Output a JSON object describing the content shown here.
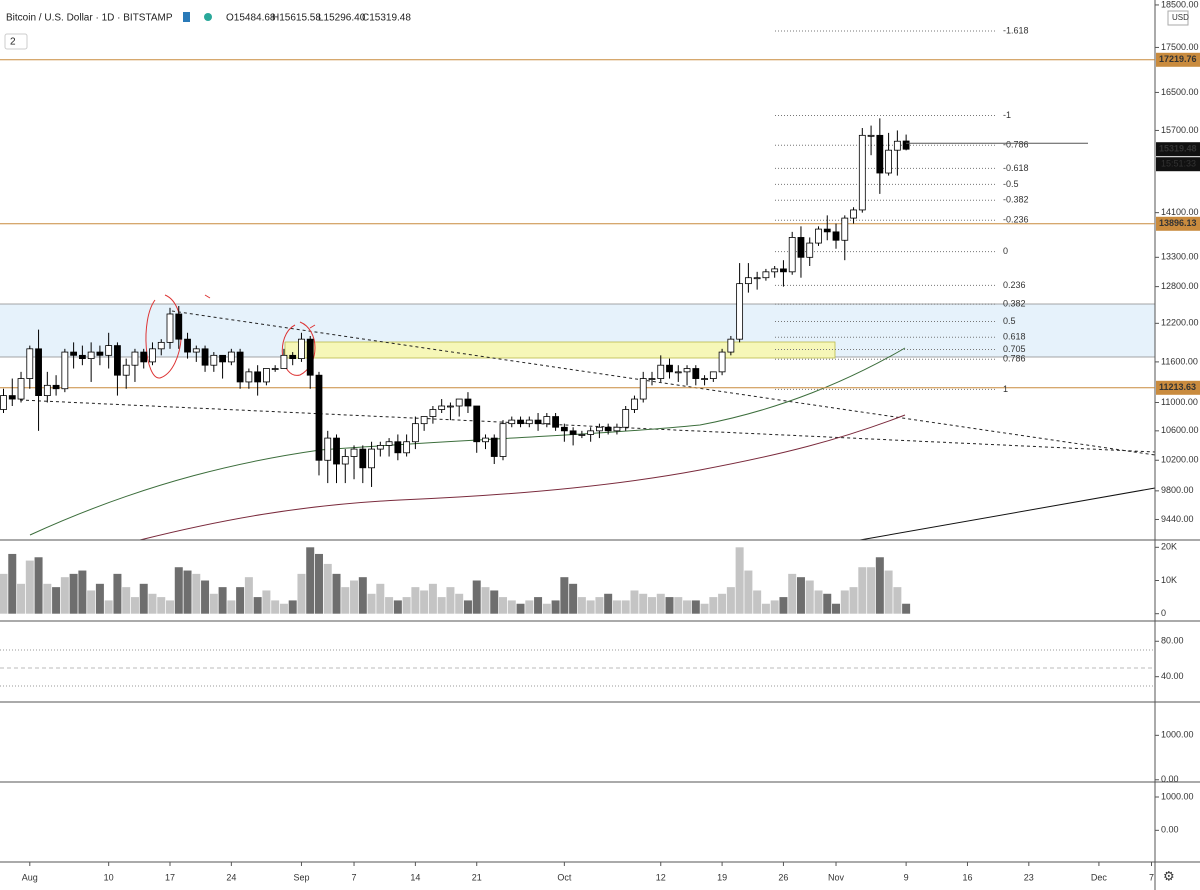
{
  "header": {
    "symbol": "Bitcoin / U.S. Dollar · 1D · BITSTAMP",
    "ohlc_labels": [
      "O15484.68",
      "H15615.58",
      "L15296.40",
      "C15319.48"
    ],
    "badge": "2",
    "currency": "USD",
    "timer": "15:51:33"
  },
  "chart_data": [
    {
      "type": "candlestick",
      "log_scale": true,
      "ylim": [
        9190,
        18620
      ],
      "xlim": [
        -3.4,
        128.4
      ],
      "yticks": [
        {
          "value": 18500,
          "label": "18500.00"
        },
        {
          "value": 17500,
          "label": "17500.00"
        },
        {
          "value": 16500,
          "label": "16500.00"
        },
        {
          "value": 15700,
          "label": "15700.00"
        },
        {
          "value": 14100,
          "label": "14100.00"
        },
        {
          "value": 13300,
          "label": "13300.00"
        },
        {
          "value": 12800,
          "label": "12800.00"
        },
        {
          "value": 12200,
          "label": "12200.00"
        },
        {
          "value": 11600,
          "label": "11600.00"
        },
        {
          "value": 11000,
          "label": "11000.00"
        },
        {
          "value": 10600,
          "label": "10600.00"
        },
        {
          "value": 10200,
          "label": "10200.00"
        },
        {
          "value": 9800,
          "label": "9800.00"
        },
        {
          "value": 9440,
          "label": "9440.00"
        }
      ],
      "xticks": [
        {
          "value": 0,
          "label": "Aug"
        },
        {
          "value": 9,
          "label": "10"
        },
        {
          "value": 16,
          "label": "17"
        },
        {
          "value": 23,
          "label": "24"
        },
        {
          "value": 31,
          "label": "Sep"
        },
        {
          "value": 37,
          "label": "7"
        },
        {
          "value": 44,
          "label": "14"
        },
        {
          "value": 51,
          "label": "21"
        },
        {
          "value": 61,
          "label": "Oct"
        },
        {
          "value": 72,
          "label": "12"
        },
        {
          "value": 79,
          "label": "19"
        },
        {
          "value": 86,
          "label": "26"
        },
        {
          "value": 92,
          "label": "Nov"
        },
        {
          "value": 100,
          "label": "9"
        },
        {
          "value": 107,
          "label": "16"
        },
        {
          "value": 114,
          "label": "23"
        },
        {
          "value": 122,
          "label": "Dec"
        },
        {
          "value": 128,
          "label": "7"
        }
      ],
      "up_color": "#ffffff",
      "down_color": "#000000",
      "levels": [
        17219.76,
        13896.13,
        11213.63
      ],
      "level_color": "#c98b3e",
      "fib_levels": [
        {
          "ratio": -1.618,
          "price": 17880
        },
        {
          "ratio": -1,
          "price": 16010
        },
        {
          "ratio": -0.786,
          "price": 15400
        },
        {
          "ratio": -0.618,
          "price": 14940
        },
        {
          "ratio": -0.5,
          "price": 14630
        },
        {
          "ratio": -0.382,
          "price": 14330
        },
        {
          "ratio": -0.236,
          "price": 13960
        },
        {
          "ratio": 0,
          "price": 13400
        },
        {
          "ratio": 0.236,
          "price": 12820
        },
        {
          "ratio": 0.382,
          "price": 12510
        },
        {
          "ratio": 0.5,
          "price": 12230
        },
        {
          "ratio": 0.618,
          "price": 11980
        },
        {
          "ratio": 0.705,
          "price": 11790
        },
        {
          "ratio": 0.786,
          "price": 11640
        },
        {
          "ratio": 1,
          "price": 11190
        }
      ],
      "x": [
        -3,
        -2,
        -1,
        0,
        1,
        2,
        3,
        4,
        5,
        6,
        7,
        8,
        9,
        10,
        11,
        12,
        13,
        14,
        15,
        16,
        17,
        18,
        19,
        20,
        21,
        22,
        23,
        24,
        25,
        26,
        27,
        28,
        29,
        30,
        31,
        32,
        33,
        34,
        35,
        36,
        37,
        38,
        39,
        40,
        41,
        42,
        43,
        44,
        45,
        46,
        47,
        48,
        49,
        50,
        51,
        52,
        53,
        54,
        55,
        56,
        57,
        58,
        59,
        60,
        61,
        62,
        63,
        64,
        65,
        66,
        67,
        68,
        69,
        70,
        71,
        72,
        73,
        74,
        75,
        76,
        77,
        78,
        79,
        80,
        81,
        82,
        83,
        84,
        85,
        86,
        87,
        88,
        89,
        90,
        91,
        92,
        93,
        94,
        95,
        96,
        97,
        98,
        99,
        100
      ],
      "candles": [
        [
          10900,
          11200,
          10850,
          11100
        ],
        [
          11100,
          11350,
          10950,
          11050
        ],
        [
          11050,
          11450,
          11000,
          11350
        ],
        [
          11350,
          11850,
          11200,
          11800
        ],
        [
          11800,
          12100,
          10600,
          11100
        ],
        [
          11100,
          11450,
          11000,
          11250
        ],
        [
          11250,
          11400,
          11100,
          11200
        ],
        [
          11200,
          11800,
          11150,
          11750
        ],
        [
          11750,
          11900,
          11500,
          11700
        ],
        [
          11700,
          11850,
          11550,
          11650
        ],
        [
          11650,
          11900,
          11300,
          11750
        ],
        [
          11750,
          11850,
          11550,
          11700
        ],
        [
          11700,
          12050,
          11500,
          11850
        ],
        [
          11850,
          11900,
          11100,
          11400
        ],
        [
          11400,
          11650,
          11200,
          11550
        ],
        [
          11550,
          11800,
          11300,
          11750
        ],
        [
          11750,
          11800,
          11500,
          11600
        ],
        [
          11600,
          11900,
          11550,
          11800
        ],
        [
          11800,
          11950,
          11700,
          11900
        ],
        [
          11900,
          12450,
          11800,
          12350
        ],
        [
          12350,
          12480,
          11800,
          11950
        ],
        [
          11950,
          12050,
          11650,
          11750
        ],
        [
          11750,
          11850,
          11600,
          11800
        ],
        [
          11800,
          11850,
          11450,
          11550
        ],
        [
          11550,
          11750,
          11450,
          11700
        ],
        [
          11700,
          11700,
          11350,
          11600
        ],
        [
          11600,
          11800,
          11550,
          11750
        ],
        [
          11750,
          11800,
          11200,
          11300
        ],
        [
          11300,
          11500,
          11200,
          11450
        ],
        [
          11450,
          11550,
          11100,
          11300
        ],
        [
          11300,
          11500,
          11250,
          11500
        ],
        [
          11500,
          11550,
          11450,
          11500
        ],
        [
          11500,
          11800,
          11500,
          11700
        ],
        [
          11700,
          11750,
          11550,
          11650
        ],
        [
          11650,
          12050,
          11600,
          11950
        ],
        [
          11950,
          12000,
          11200,
          11400
        ],
        [
          11400,
          11450,
          10000,
          10200
        ],
        [
          10200,
          10600,
          9900,
          10500
        ],
        [
          10500,
          10550,
          9900,
          10150
        ],
        [
          10150,
          10350,
          9900,
          10250
        ],
        [
          10250,
          10400,
          9950,
          10350
        ],
        [
          10350,
          10400,
          9900,
          10100
        ],
        [
          10100,
          10450,
          9850,
          10350
        ],
        [
          10350,
          10450,
          10250,
          10400
        ],
        [
          10400,
          10500,
          10250,
          10450
        ],
        [
          10450,
          10550,
          10200,
          10300
        ],
        [
          10300,
          10550,
          10250,
          10450
        ],
        [
          10450,
          10800,
          10350,
          10700
        ],
        [
          10700,
          10800,
          10600,
          10800
        ],
        [
          10800,
          10950,
          10700,
          10900
        ],
        [
          10900,
          11050,
          10850,
          10950
        ],
        [
          10950,
          11000,
          10750,
          10950
        ],
        [
          10950,
          11050,
          10800,
          11050
        ],
        [
          11050,
          11150,
          10850,
          10950
        ],
        [
          10950,
          10950,
          10300,
          10450
        ],
        [
          10450,
          10550,
          10350,
          10500
        ],
        [
          10500,
          10550,
          10150,
          10250
        ],
        [
          10250,
          10750,
          10200,
          10700
        ],
        [
          10700,
          10800,
          10650,
          10750
        ],
        [
          10750,
          10800,
          10650,
          10700
        ],
        [
          10700,
          10800,
          10650,
          10750
        ],
        [
          10750,
          10850,
          10600,
          10700
        ],
        [
          10700,
          10850,
          10650,
          10800
        ],
        [
          10800,
          10850,
          10600,
          10650
        ],
        [
          10650,
          10700,
          10450,
          10600
        ],
        [
          10600,
          10650,
          10400,
          10550
        ],
        [
          10550,
          10600,
          10500,
          10550
        ],
        [
          10550,
          10650,
          10450,
          10600
        ],
        [
          10600,
          10700,
          10500,
          10650
        ],
        [
          10650,
          10700,
          10550,
          10600
        ],
        [
          10600,
          10700,
          10550,
          10650
        ],
        [
          10650,
          10950,
          10600,
          10900
        ],
        [
          10900,
          11100,
          10850,
          11050
        ],
        [
          11050,
          11450,
          11000,
          11350
        ],
        [
          11350,
          11450,
          11250,
          11350
        ],
        [
          11350,
          11700,
          11300,
          11550
        ],
        [
          11550,
          11650,
          11350,
          11450
        ],
        [
          11450,
          11550,
          11300,
          11450
        ],
        [
          11450,
          11550,
          11250,
          11500
        ],
        [
          11500,
          11550,
          11250,
          11350
        ],
        [
          11350,
          11400,
          11250,
          11350
        ],
        [
          11350,
          11450,
          11300,
          11450
        ],
        [
          11450,
          11800,
          11400,
          11750
        ],
        [
          11750,
          12000,
          11700,
          11950
        ],
        [
          11950,
          13200,
          11900,
          12850
        ],
        [
          12850,
          13200,
          12700,
          12950
        ],
        [
          12950,
          13050,
          12750,
          12950
        ],
        [
          12950,
          13100,
          12900,
          13050
        ],
        [
          13050,
          13150,
          12950,
          13100
        ],
        [
          13100,
          13250,
          12800,
          13050
        ],
        [
          13050,
          13750,
          13000,
          13650
        ],
        [
          13650,
          13850,
          12950,
          13300
        ],
        [
          13300,
          13650,
          13150,
          13550
        ],
        [
          13550,
          13850,
          13500,
          13800
        ],
        [
          13800,
          14050,
          13600,
          13750
        ],
        [
          13750,
          13900,
          13450,
          13600
        ],
        [
          13600,
          14050,
          13250,
          14000
        ],
        [
          14000,
          14200,
          13900,
          14150
        ],
        [
          14150,
          15750,
          14100,
          15600
        ],
        [
          15600,
          15800,
          15200,
          15600
        ],
        [
          15600,
          15950,
          14450,
          14850
        ],
        [
          14850,
          15650,
          14800,
          15300
        ],
        [
          15300,
          15700,
          14800,
          15480
        ],
        [
          15484.68,
          15615.58,
          15296.4,
          15319.48
        ]
      ]
    },
    {
      "type": "bar",
      "ylim": [
        -2200,
        22200
      ],
      "yticks": [
        0,
        {
          "value": 10000,
          "label": "10K"
        },
        {
          "value": 20000,
          "label": "20K"
        }
      ],
      "up_color": "#c4c4c4",
      "down_color": "#6e6e6e",
      "values": [
        12000,
        18000,
        9000,
        16000,
        17000,
        9000,
        8000,
        11000,
        12000,
        13000,
        7000,
        9000,
        4000,
        12000,
        8000,
        5000,
        9000,
        6000,
        5000,
        4000,
        14000,
        13000,
        12000,
        10000,
        6000,
        8000,
        4000,
        8000,
        11000,
        5000,
        7000,
        4000,
        3000,
        4000,
        12000,
        20000,
        18000,
        15000,
        12000,
        8000,
        10000,
        11000,
        6000,
        9000,
        5000,
        4000,
        5000,
        8000,
        7000,
        9000,
        5000,
        8000,
        6000,
        4000,
        10000,
        8000,
        7000,
        5000,
        4000,
        3000,
        4000,
        5000,
        3000,
        4000,
        11000,
        9000,
        5000,
        4000,
        5000,
        6000,
        4000,
        4000,
        7000,
        6000,
        5000,
        6000,
        5000,
        5000,
        4000,
        4000,
        3000,
        5000,
        6000,
        8000,
        20000,
        13000,
        7000,
        3000,
        4000,
        5000,
        12000,
        11000,
        10000,
        7000,
        6000,
        3000,
        7000,
        8000,
        14000,
        14000,
        17000,
        13000,
        8000,
        3000
      ]
    },
    {
      "type": "line",
      "ylim": [
        11.4,
        102.9
      ],
      "yticks": [
        {
          "value": 40,
          "label": "40.00"
        },
        {
          "value": 80,
          "label": "80.00"
        }
      ]
    },
    {
      "type": "line",
      "ylim": [
        -50,
        1750
      ],
      "yticks": [
        {
          "value": 0,
          "label": "0.00"
        },
        {
          "value": 1000,
          "label": "1000.00"
        }
      ]
    },
    {
      "type": "line",
      "ylim": [
        -950,
        1450
      ],
      "yticks": [
        {
          "value": 0,
          "label": "0.00"
        },
        {
          "value": 1000,
          "label": "1000.00"
        }
      ]
    }
  ]
}
